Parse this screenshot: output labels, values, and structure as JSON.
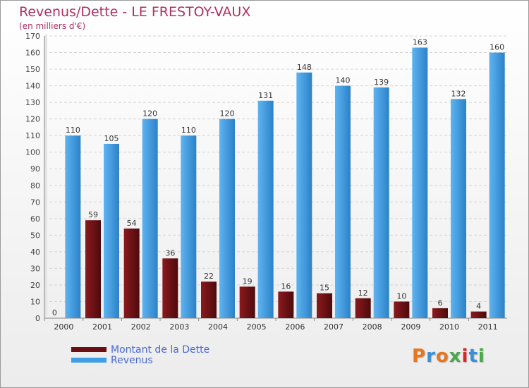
{
  "chart_data": {
    "type": "bar",
    "title": "Revenus/Dette - LE FRESTOY-VAUX",
    "subtitle": "(en milliers d'€)",
    "categories": [
      "2000",
      "2001",
      "2002",
      "2003",
      "2004",
      "2005",
      "2006",
      "2007",
      "2008",
      "2009",
      "2010",
      "2011"
    ],
    "series": [
      {
        "name": "Montant de la Dette",
        "values": [
          0,
          59,
          54,
          36,
          22,
          19,
          16,
          15,
          12,
          10,
          6,
          4
        ],
        "color": "#6b0f12"
      },
      {
        "name": "Revenus",
        "values": [
          110,
          105,
          120,
          110,
          120,
          131,
          148,
          140,
          139,
          163,
          132,
          160
        ],
        "color": "#3f9fe6"
      }
    ],
    "ylim": [
      0,
      170
    ],
    "yticks": [
      0,
      10,
      20,
      30,
      40,
      50,
      60,
      70,
      80,
      90,
      100,
      110,
      120,
      130,
      140,
      150,
      160,
      170
    ],
    "grid": true,
    "legend_position": "bottom-left"
  },
  "logo": {
    "text": "Proxiti",
    "colors": [
      "#e8761e",
      "#3a8fd8",
      "#e8761e",
      "#4aa84a",
      "#d8262a",
      "#3a8fd8",
      "#4aa84a"
    ]
  }
}
